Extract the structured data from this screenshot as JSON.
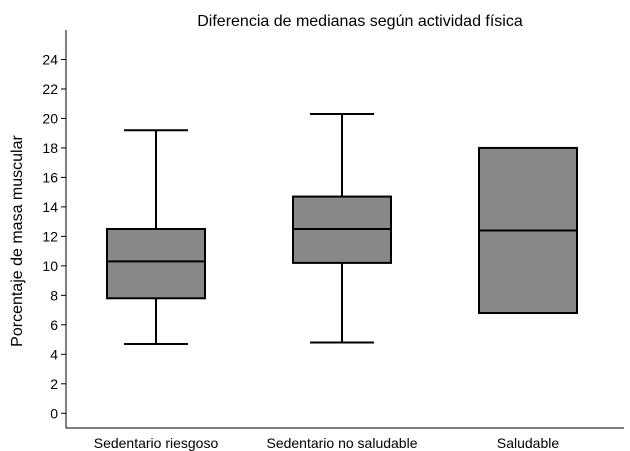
{
  "chart_data": {
    "type": "box",
    "title": "Diferencia de medianas según actividad física",
    "xlabel": "",
    "ylabel": "Porcentaje de masa muscular",
    "ylim": [
      -1,
      26
    ],
    "yticks": [
      0,
      2,
      4,
      6,
      8,
      10,
      12,
      14,
      16,
      18,
      20,
      22,
      24
    ],
    "grid": false,
    "box_color": "#888888",
    "categories": [
      "Sedentario riesgoso",
      "Sedentario no saludable",
      "Saludable"
    ],
    "boxes": [
      {
        "min": 4.7,
        "q1": 7.8,
        "median": 10.3,
        "q3": 12.5,
        "max": 19.2
      },
      {
        "min": 4.8,
        "q1": 10.2,
        "median": 12.5,
        "q3": 14.7,
        "max": 20.3
      },
      {
        "min": null,
        "q1": 6.8,
        "median": 12.4,
        "q3": 18.0,
        "max": null
      }
    ]
  }
}
